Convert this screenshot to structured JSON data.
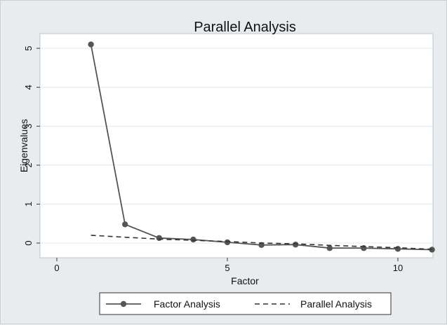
{
  "chart_data": {
    "type": "line",
    "title": "Parallel Analysis",
    "xlabel": "Factor",
    "ylabel": "Eigenvalues",
    "xlim": [
      0,
      11
    ],
    "ylim": [
      -0.2,
      5.2
    ],
    "x_ticks": [
      0,
      5,
      10
    ],
    "y_ticks": [
      0,
      1,
      2,
      3,
      4,
      5
    ],
    "grid": "horizontal",
    "legend_position": "bottom",
    "series": [
      {
        "name": "Factor Analysis",
        "style": "solid-with-markers",
        "color": "#555555",
        "x": [
          1,
          2,
          3,
          4,
          5,
          6,
          7,
          8,
          9,
          10,
          11
        ],
        "y": [
          5.1,
          0.48,
          0.13,
          0.09,
          0.02,
          -0.05,
          -0.04,
          -0.13,
          -0.13,
          -0.15,
          -0.17
        ]
      },
      {
        "name": "Parallel Analysis",
        "style": "dashed",
        "color": "#333333",
        "x": [
          1,
          2,
          3,
          4,
          5,
          6,
          7,
          8,
          9,
          10,
          11
        ],
        "y": [
          0.2,
          0.15,
          0.1,
          0.07,
          0.04,
          0.0,
          -0.02,
          -0.06,
          -0.09,
          -0.12,
          -0.16
        ]
      }
    ]
  }
}
